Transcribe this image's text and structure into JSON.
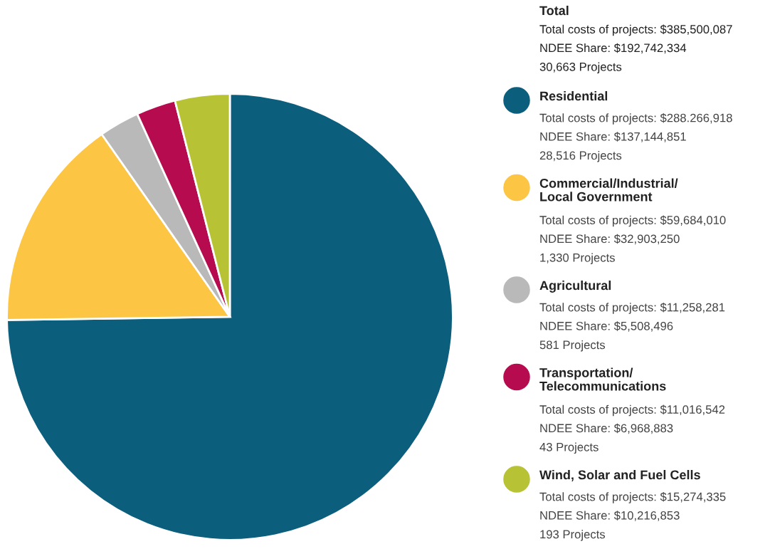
{
  "chart_data": {
    "type": "pie",
    "categories": [
      "Residential",
      "Commercial/Industrial/\nLocal Government",
      "Agricultural",
      "Transportation/\nTelecommunications",
      "Wind, Solar and Fuel Cells"
    ],
    "values": [
      74.78,
      15.48,
      2.92,
      2.86,
      3.96
    ],
    "colors": [
      "#0b5e7c",
      "#fdc544",
      "#b9b9b9",
      "#b70b50",
      "#b8c235"
    ],
    "legend": "right",
    "annotations": [
      "Total",
      "Total costs of projects: $385,500,087",
      "NDEE Share: $192,742,334",
      "30,663 Projects",
      "Total costs of projects: $288.266,918",
      "NDEE Share: $137,144,851",
      "28,516 Projects",
      "Total costs of projects: $59,684,010",
      "NDEE Share: $32,903,250",
      "1,330 Projects",
      "Total costs of projects: $11,258,281",
      "NDEE Share: $5,508,496",
      "581 Projects",
      "Total costs of projects: $11,016,542",
      "NDEE Share: $6,968,883",
      "43 Projects",
      "Total costs of projects: $15,274,335",
      "NDEE Share: $10,216,853",
      "193 Projects"
    ]
  }
}
